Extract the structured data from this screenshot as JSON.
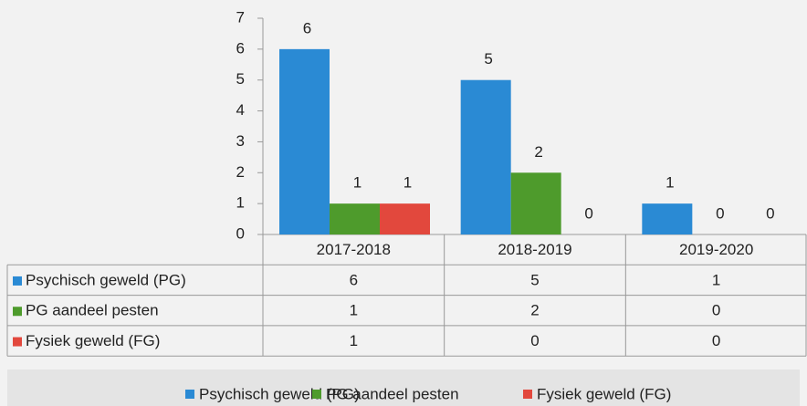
{
  "chart_data": {
    "type": "bar",
    "categories": [
      "2017-2018",
      "2018-2019",
      "2019-2020"
    ],
    "series": [
      {
        "name": "Psychisch geweld (PG)",
        "color": "#2a8ad4",
        "values": [
          6,
          5,
          1
        ]
      },
      {
        "name": "PG aandeel pesten",
        "color": "#4e9b2c",
        "values": [
          1,
          2,
          0
        ]
      },
      {
        "name": "Fysiek geweld (FG)",
        "color": "#e2483d",
        "values": [
          1,
          0,
          0
        ]
      }
    ],
    "ylim": [
      0,
      7
    ],
    "yticks": [
      0,
      1,
      2,
      3,
      4,
      5,
      6,
      7
    ],
    "grid": false,
    "data_table": true,
    "legend": "bottom"
  }
}
